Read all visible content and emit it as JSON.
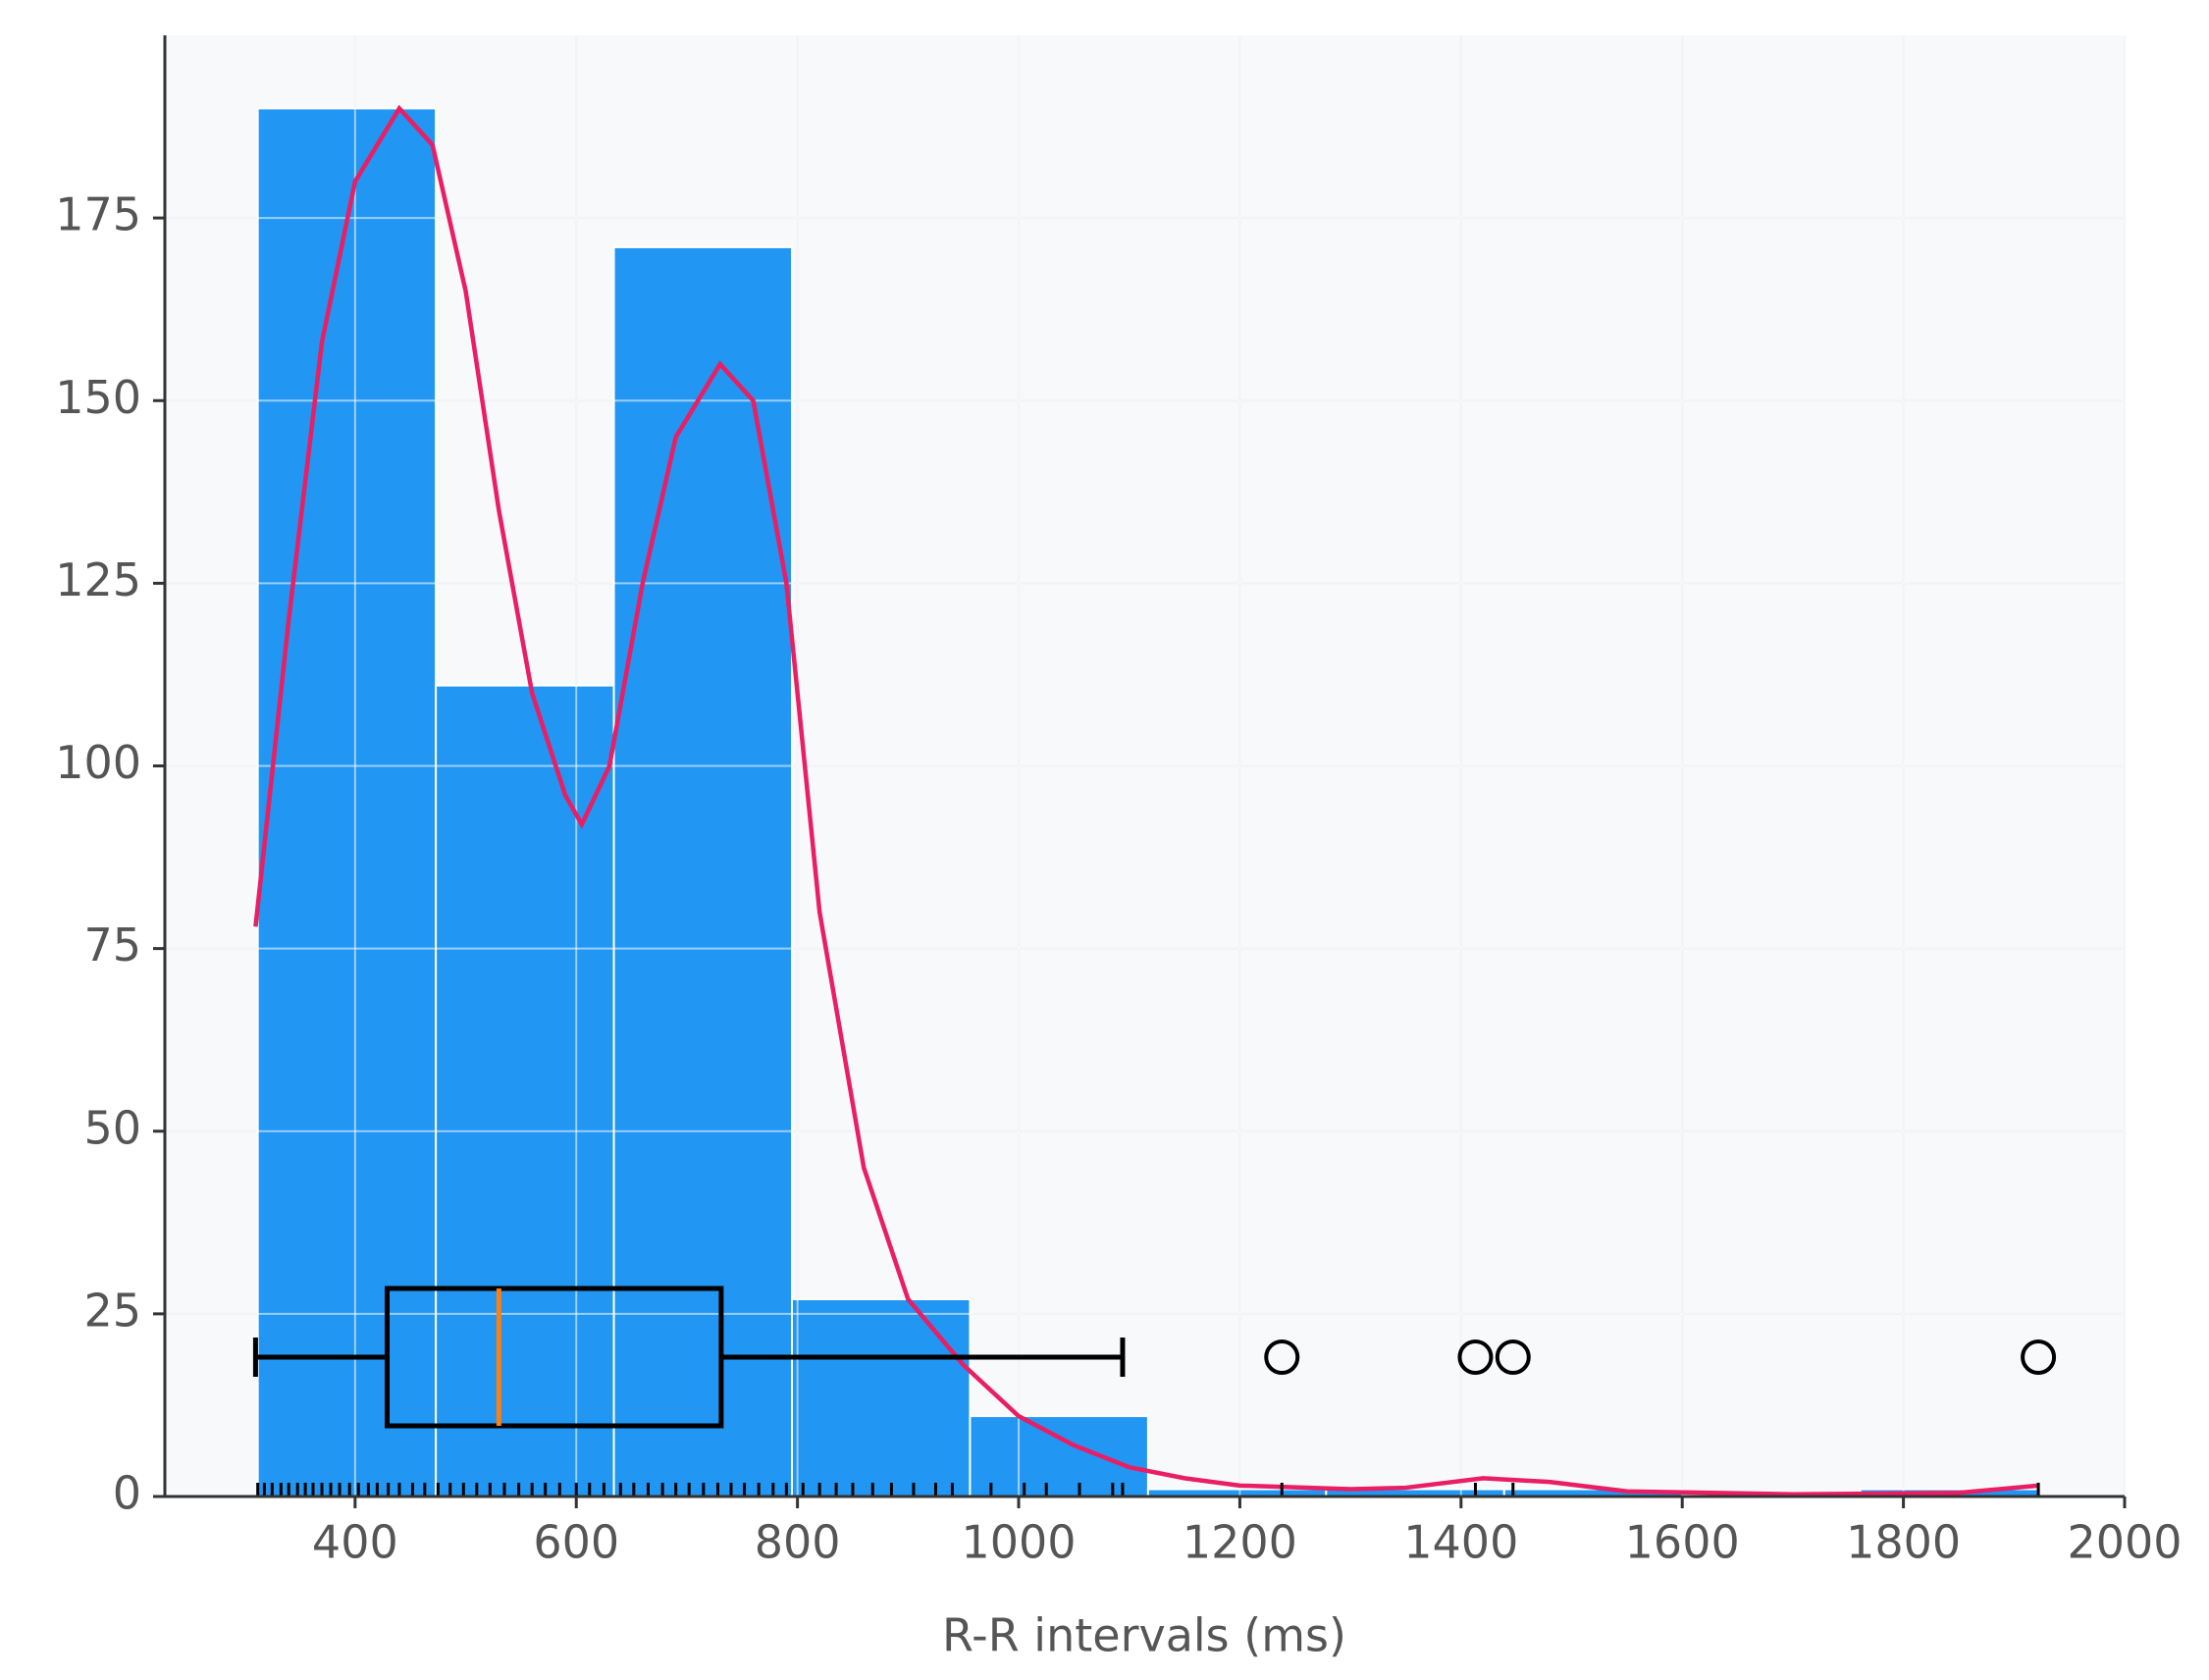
{
  "chart_data": {
    "type": "histogram",
    "x_label": "R-R intervals (ms)",
    "bins": [
      312,
      473,
      634,
      795,
      956,
      1117,
      1278,
      1439,
      1600,
      1761,
      1922
    ],
    "values": [
      190,
      111,
      171,
      27,
      11,
      1,
      1,
      1,
      0,
      1
    ],
    "color": "#2196f3",
    "kde": {
      "color": "#e91e63",
      "x": [
        310,
        340,
        370,
        400,
        440,
        470,
        500,
        530,
        560,
        590,
        605,
        630,
        660,
        690,
        730,
        760,
        790,
        820,
        860,
        900,
        950,
        1000,
        1050,
        1100,
        1150,
        1200,
        1300,
        1350,
        1420,
        1480,
        1550,
        1700,
        1850,
        1922
      ],
      "y": [
        78,
        120,
        158,
        180,
        190,
        185,
        165,
        135,
        110,
        96,
        92,
        100,
        125,
        145,
        155,
        150,
        125,
        80,
        45,
        27,
        18,
        11,
        7,
        4,
        2.5,
        1.5,
        1,
        1.2,
        2.5,
        2,
        0.7,
        0.3,
        0.5,
        1.5
      ]
    },
    "boxplot": {
      "whislo": 310,
      "q1": 429,
      "med": 530,
      "q3": 731,
      "whishi": 1094,
      "fliers": [
        1238,
        1413,
        1447,
        1922
      ],
      "median_color": "#ff7f0e"
    },
    "rug": [
      312,
      318,
      325,
      333,
      340,
      348,
      355,
      362,
      370,
      378,
      386,
      395,
      403,
      412,
      420,
      430,
      440,
      452,
      463,
      475,
      486,
      498,
      510,
      522,
      535,
      548,
      560,
      572,
      585,
      600,
      612,
      625,
      640,
      652,
      665,
      678,
      690,
      702,
      715,
      728,
      740,
      752,
      765,
      778,
      790,
      805,
      820,
      835,
      850,
      868,
      885,
      905,
      925,
      940,
      975,
      1005,
      1025,
      1055,
      1085,
      1094,
      1238,
      1413,
      1447,
      1922
    ],
    "xlim": [
      228,
      2000
    ],
    "ylim": [
      0,
      200
    ],
    "xticks": [
      400,
      600,
      800,
      1000,
      1200,
      1400,
      1600,
      1800,
      2000
    ],
    "yticks": [
      0,
      25,
      50,
      75,
      100,
      125,
      150,
      175
    ],
    "grid": true
  }
}
